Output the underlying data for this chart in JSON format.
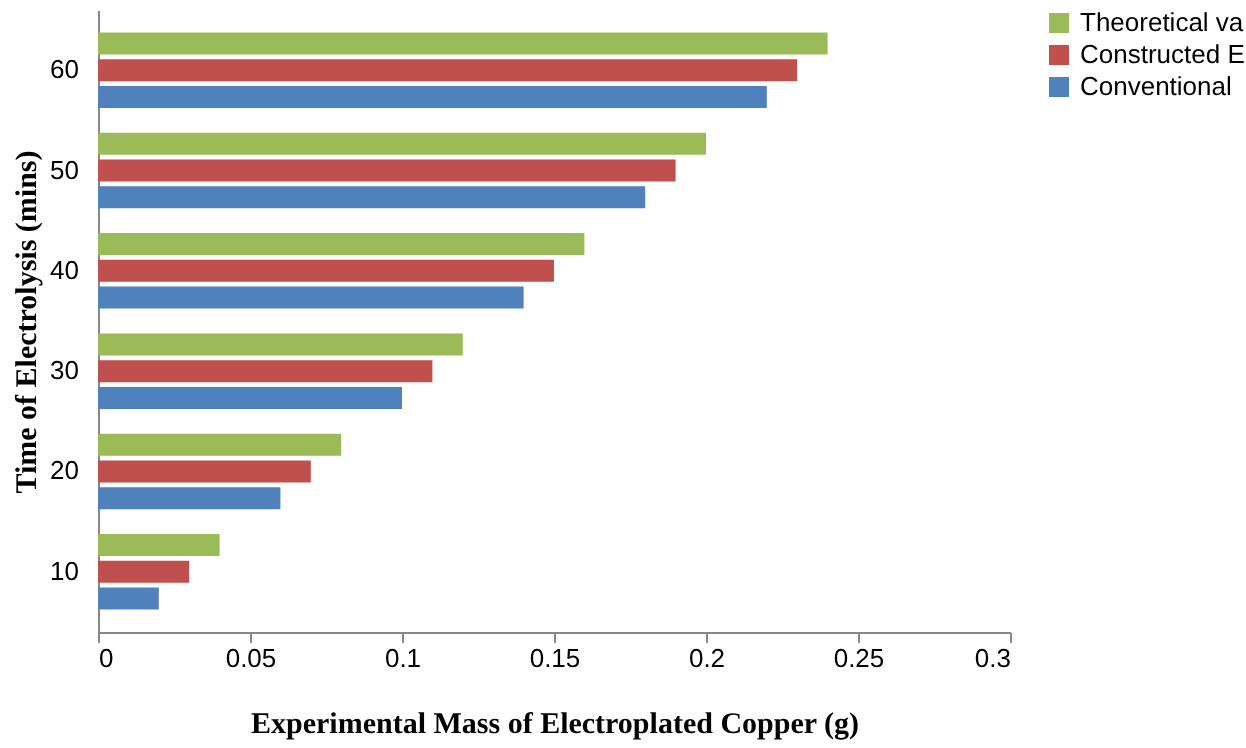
{
  "chart_data": {
    "type": "bar",
    "orientation": "horizontal",
    "xlabel": "Experimental Mass of Electroplated Copper (g)",
    "ylabel": "Time of Electrolysis (mins)",
    "categories": [
      "60",
      "50",
      "40",
      "30",
      "20",
      "10"
    ],
    "series": [
      {
        "name": "Theoretical va",
        "color": "#9bbb59",
        "values": [
          0.24,
          0.2,
          0.16,
          0.12,
          0.08,
          0.04
        ]
      },
      {
        "name": "Constructed E",
        "color": "#c0504d",
        "values": [
          0.23,
          0.19,
          0.15,
          0.11,
          0.07,
          0.03
        ]
      },
      {
        "name": "Conventional",
        "color": "#4f81bd",
        "values": [
          0.22,
          0.18,
          0.14,
          0.1,
          0.06,
          0.02
        ]
      }
    ],
    "xlim": [
      0,
      0.3
    ],
    "xticks": [
      0,
      0.05,
      0.1,
      0.15,
      0.2,
      0.25,
      0.3
    ],
    "grid": false,
    "legend": "right"
  }
}
